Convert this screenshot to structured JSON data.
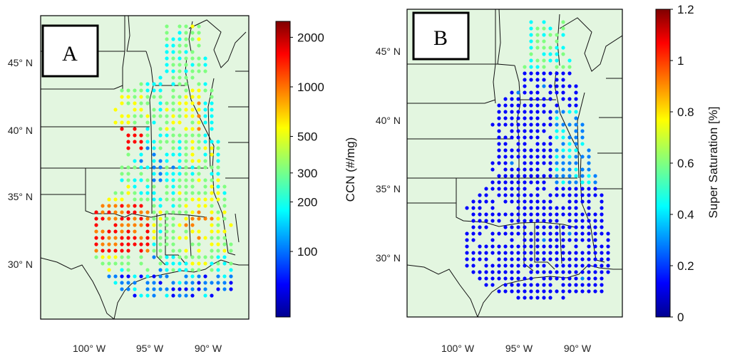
{
  "panels": [
    {
      "id": "A",
      "label": "A",
      "lat_ticks": [
        "45° N",
        "40° N",
        "35° N",
        "30° N"
      ],
      "lon_ticks": [
        "100° W",
        "95° W",
        "90° W"
      ],
      "colorbar": {
        "label": "CCN (#/mg)",
        "scale": "log",
        "range": [
          40,
          2500
        ],
        "ticks": [
          {
            "value": 2000,
            "label": "2000"
          },
          {
            "value": 1000,
            "label": "1000"
          },
          {
            "value": 500,
            "label": "500"
          },
          {
            "value": 300,
            "label": "300"
          },
          {
            "value": 200,
            "label": "200"
          },
          {
            "value": 100,
            "label": "100"
          }
        ]
      }
    },
    {
      "id": "B",
      "label": "B",
      "lat_ticks": [
        "45° N",
        "40° N",
        "35° N",
        "30° N"
      ],
      "lon_ticks": [
        "100° W",
        "95° W",
        "90° W"
      ],
      "colorbar": {
        "label": "Super Saturation [%]",
        "scale": "linear",
        "range": [
          0,
          1.2
        ],
        "ticks": [
          {
            "value": 1.2,
            "label": "1.2"
          },
          {
            "value": 1,
            "label": "1"
          },
          {
            "value": 0.8,
            "label": "0.8"
          },
          {
            "value": 0.6,
            "label": "0.6"
          },
          {
            "value": 0.4,
            "label": "0.4"
          },
          {
            "value": 0.2,
            "label": "0.2"
          },
          {
            "value": 0,
            "label": "0"
          }
        ]
      }
    }
  ],
  "colors": {
    "land": "#e3f6e0",
    "border": "#111111",
    "jet": [
      "#00008f",
      "#0000ff",
      "#0080ff",
      "#00ffff",
      "#80ff80",
      "#ffff00",
      "#ff8000",
      "#ff0000",
      "#800000"
    ]
  }
}
